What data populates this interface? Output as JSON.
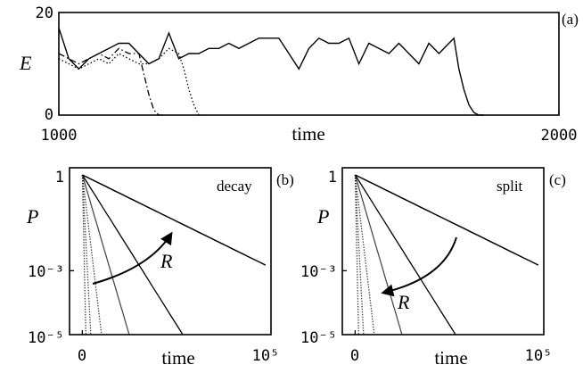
{
  "chart_data": [
    {
      "panel_label": "(a)",
      "type": "line",
      "ylabel": "E",
      "xlabel": "time",
      "xlim": [
        1000,
        2000
      ],
      "ylim": [
        0,
        20
      ],
      "x_tick_labels": [
        "1000",
        "2000"
      ],
      "y_tick_labels": [
        "0",
        "20"
      ],
      "series": [
        {
          "style": "solid",
          "x": [
            1000,
            1010,
            1020,
            1040,
            1060,
            1080,
            1100,
            1120,
            1140,
            1160,
            1180,
            1200,
            1220,
            1240,
            1260,
            1280,
            1300,
            1320,
            1340,
            1360,
            1380,
            1400,
            1420,
            1440,
            1460,
            1480,
            1500,
            1520,
            1540,
            1560,
            1580,
            1600,
            1620,
            1640,
            1660,
            1680,
            1700,
            1720,
            1740,
            1760,
            1780,
            1790,
            1800,
            1810,
            1820,
            1830,
            1840,
            1850
          ],
          "y": [
            17,
            14,
            11,
            9,
            11,
            12,
            13,
            14,
            14,
            12,
            10,
            11,
            16,
            11,
            12,
            12,
            13,
            13,
            14,
            13,
            14,
            15,
            15,
            15,
            12,
            9,
            13,
            15,
            14,
            14,
            15,
            10,
            14,
            13,
            12,
            14,
            12,
            10,
            14,
            12,
            14,
            15,
            9,
            5,
            2,
            0.5,
            0,
            0
          ]
        },
        {
          "style": "dashdot",
          "x": [
            1000,
            1020,
            1040,
            1060,
            1080,
            1100,
            1120,
            1140,
            1160,
            1170,
            1180,
            1190,
            1200,
            1210
          ],
          "y": [
            12,
            11,
            10,
            11,
            12,
            11,
            13,
            12,
            12,
            8,
            4,
            1,
            0,
            0
          ]
        },
        {
          "style": "dotted",
          "x": [
            1000,
            1020,
            1040,
            1060,
            1080,
            1100,
            1120,
            1140,
            1160,
            1180,
            1200,
            1220,
            1240,
            1250,
            1260,
            1270,
            1280,
            1290
          ],
          "y": [
            11,
            10,
            9,
            10,
            11,
            10,
            12,
            11,
            10,
            10,
            11,
            13,
            12,
            9,
            5,
            2,
            0,
            0
          ]
        }
      ]
    },
    {
      "panel_label": "(b)",
      "type": "line",
      "title": "decay",
      "ylabel": "P",
      "xlabel": "time",
      "yscale": "log",
      "xlim": [
        0,
        100000
      ],
      "ylim": [
        1e-05,
        1
      ],
      "x_tick_labels": [
        "0",
        "10⁵"
      ],
      "y_tick_labels": [
        "1",
        "10⁻³",
        "10⁻⁵"
      ],
      "annotation": "R",
      "series": [
        {
          "decay_rate_per_time": 6.5e-05
        },
        {
          "decay_rate_per_time": 0.00021
        },
        {
          "decay_rate_per_time": 0.00045
        },
        {
          "decay_rate_per_time": 0.0011
        },
        {
          "decay_rate_per_time": 0.0025
        },
        {
          "decay_rate_per_time": 0.006
        }
      ]
    },
    {
      "panel_label": "(c)",
      "type": "line",
      "title": "split",
      "ylabel": "P",
      "xlabel": "time",
      "yscale": "log",
      "xlim": [
        0,
        100000
      ],
      "ylim": [
        1e-05,
        1
      ],
      "x_tick_labels": [
        "0",
        "10⁵"
      ],
      "y_tick_labels": [
        "1",
        "10⁻³",
        "10⁻⁵"
      ],
      "annotation": "R",
      "series": [
        {
          "decay_rate_per_time": 6.5e-05
        },
        {
          "decay_rate_per_time": 0.00021
        },
        {
          "decay_rate_per_time": 0.00045
        },
        {
          "decay_rate_per_time": 0.0011
        },
        {
          "decay_rate_per_time": 0.0025
        },
        {
          "decay_rate_per_time": 0.006
        }
      ]
    }
  ]
}
